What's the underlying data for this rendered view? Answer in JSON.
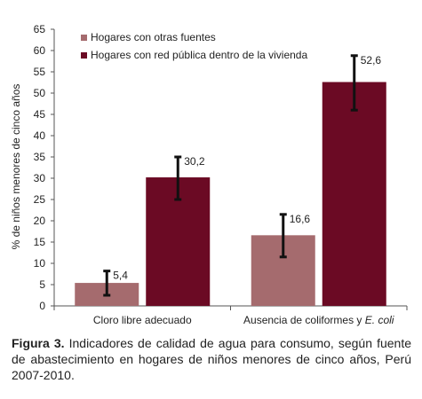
{
  "chart_data": {
    "type": "bar",
    "ylabel": "% de niños menores de cinco años",
    "ylim": [
      0,
      65
    ],
    "yticks": [
      0,
      5,
      10,
      15,
      20,
      25,
      30,
      35,
      40,
      45,
      50,
      55,
      60,
      65
    ],
    "categories": [
      "Cloro libre adecuado",
      "Ausencia de coliformes y E. coli"
    ],
    "series": [
      {
        "name": "Hogares con otras fuentes",
        "color": "#a56b6e",
        "values": [
          5.4,
          16.6
        ],
        "ci_low": [
          2.5,
          11.5
        ],
        "ci_high": [
          8.2,
          21.5
        ],
        "labels": [
          "5,4",
          "16,6"
        ]
      },
      {
        "name": "Hogares con red pública dentro de la vivienda",
        "color": "#6b0a24",
        "values": [
          30.2,
          52.6
        ],
        "ci_low": [
          25.0,
          46.0
        ],
        "ci_high": [
          35.0,
          58.8
        ],
        "labels": [
          "30,2",
          "52,6"
        ]
      }
    ],
    "legend_position": "top-left",
    "grid": false
  },
  "caption": {
    "figure_label": "Figura 3.",
    "text": "Indicadores de calidad de agua para consumo, según fuente de abastecimiento en hogares de niños menores de cinco años, Perú 2007-2010."
  }
}
